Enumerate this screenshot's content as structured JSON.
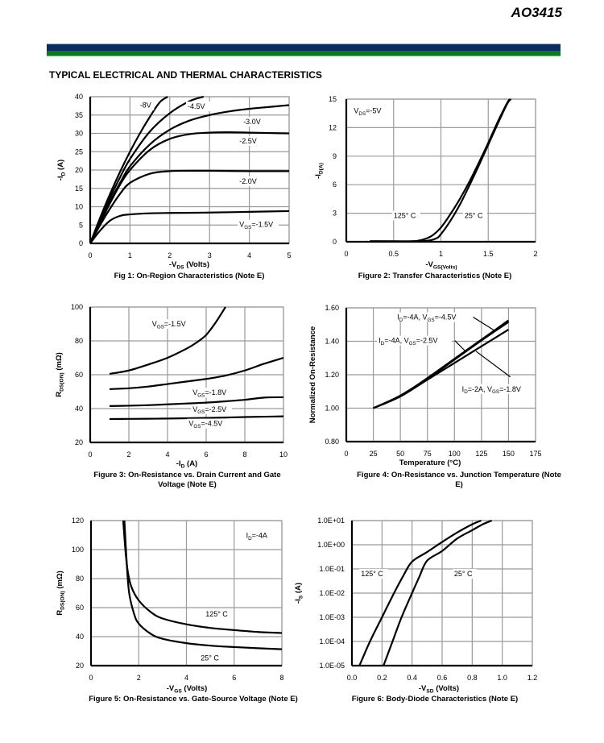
{
  "header": {
    "part_number": "AO3415",
    "section_title": "TYPICAL ELECTRICAL AND THERMAL CHARACTERISTICS",
    "brand_colors": {
      "blue": "#0a2c5e",
      "green": "#0b7b1a"
    }
  },
  "chart_data": [
    {
      "id": "fig1",
      "type": "line",
      "title": "Fig 1: On-Region Characteristics (Note E)",
      "xlabel": "-V_DS (Volts)",
      "ylabel": "-I_D (A)",
      "xlim": [
        0,
        5
      ],
      "ylim": [
        0,
        40
      ],
      "xticks": [
        0,
        1,
        2,
        3,
        4,
        5
      ],
      "yticks": [
        0,
        5,
        10,
        15,
        20,
        25,
        30,
        35,
        40
      ],
      "xtick_labels": [
        "0",
        "1",
        "2",
        "3",
        "4",
        "5"
      ],
      "ytick_labels": [
        "0",
        "5",
        "10",
        "15",
        "20",
        "25",
        "30",
        "35",
        "40"
      ],
      "grid": true,
      "series": [
        {
          "name": "-8V",
          "x": [
            0,
            0.25,
            0.5,
            0.75,
            1.0,
            1.25,
            1.5,
            1.75,
            1.95
          ],
          "y": [
            0,
            7,
            13.5,
            19.5,
            25,
            30,
            34.5,
            38.5,
            40
          ]
        },
        {
          "name": "-4.5V",
          "x": [
            0,
            0.25,
            0.5,
            0.75,
            1.0,
            1.5,
            2.0,
            2.5,
            2.85
          ],
          "y": [
            0,
            6.5,
            12.5,
            18,
            23,
            30.5,
            35.5,
            38.8,
            40
          ]
        },
        {
          "name": "-3.0V",
          "x": [
            0,
            0.25,
            0.5,
            0.75,
            1.0,
            1.5,
            2.0,
            2.5,
            3.0,
            3.5,
            4.0,
            4.5,
            5.0
          ],
          "y": [
            0,
            6,
            11.5,
            16.5,
            21,
            27,
            31,
            33.5,
            35,
            36,
            36.7,
            37.2,
            37.7
          ]
        },
        {
          "name": "-2.5V",
          "x": [
            0,
            0.25,
            0.5,
            0.75,
            1.0,
            1.5,
            2.0,
            2.5,
            3.0,
            3.5,
            4.0,
            4.5,
            5.0
          ],
          "y": [
            0,
            5.5,
            11,
            16,
            20,
            25.5,
            28.5,
            29.8,
            30.2,
            30.3,
            30.2,
            30.1,
            30.0
          ]
        },
        {
          "name": "-2.0V",
          "x": [
            0,
            0.25,
            0.5,
            0.75,
            1.0,
            1.5,
            2.0,
            2.5,
            3.0,
            4.0,
            5.0
          ],
          "y": [
            0,
            5,
            9.5,
            13.5,
            16.5,
            19,
            19.7,
            19.8,
            19.8,
            19.7,
            19.7
          ]
        },
        {
          "name": "V_GS=-1.5V",
          "x": [
            0,
            0.25,
            0.5,
            0.75,
            1.0,
            1.5,
            2.0,
            3.0,
            4.0,
            5.0
          ],
          "y": [
            0,
            3.5,
            6.2,
            7.5,
            7.9,
            8.2,
            8.3,
            8.4,
            8.6,
            8.8
          ]
        }
      ],
      "annotations": [
        {
          "text": "-8V",
          "x": 1.25,
          "y": 37
        },
        {
          "text": "-4.5V",
          "x": 2.45,
          "y": 36.7
        },
        {
          "text": "-3.0V",
          "x": 3.85,
          "y": 32.5
        },
        {
          "text": "-2.5V",
          "x": 3.75,
          "y": 27.3
        },
        {
          "text": "-2.0V",
          "x": 3.75,
          "y": 16.3
        },
        {
          "text": "V_GS=-1.5V",
          "x": 3.75,
          "y": 4.5
        }
      ]
    },
    {
      "id": "fig2",
      "type": "line",
      "title": "Figure 2: Transfer Characteristics (Note E)",
      "xlabel": "-V_GS(Volts)",
      "ylabel": "-I_D(A)",
      "xlim": [
        0,
        2
      ],
      "ylim": [
        0,
        15
      ],
      "xticks": [
        0,
        0.5,
        1,
        1.5,
        2
      ],
      "yticks": [
        0,
        3,
        6,
        9,
        12,
        15
      ],
      "xtick_labels": [
        "0",
        "0.5",
        "1",
        "1.5",
        "2"
      ],
      "ytick_labels": [
        "0",
        "3",
        "6",
        "9",
        "12",
        "15"
      ],
      "grid": true,
      "series": [
        {
          "name": "125° C",
          "x": [
            0.25,
            0.5,
            0.7,
            0.8,
            0.9,
            1.0,
            1.1,
            1.2,
            1.3,
            1.4,
            1.5,
            1.6,
            1.7,
            1.73
          ],
          "y": [
            0.05,
            0.05,
            0.05,
            0.2,
            0.6,
            1.5,
            2.9,
            4.5,
            6.3,
            8.3,
            10.4,
            12.6,
            14.6,
            15
          ]
        },
        {
          "name": "25° C",
          "x": [
            0.25,
            0.7,
            0.85,
            0.95,
            1.0,
            1.1,
            1.2,
            1.3,
            1.4,
            1.5,
            1.6,
            1.7,
            1.74
          ],
          "y": [
            0.05,
            0.05,
            0.1,
            0.35,
            0.8,
            2.2,
            3.9,
            5.9,
            8.0,
            10.2,
            12.4,
            14.5,
            15
          ]
        }
      ],
      "annotations": [
        {
          "text": "V_DS=-5V",
          "x": 0.08,
          "y": 13.5
        },
        {
          "text": "125° C",
          "x": 0.5,
          "y": 2.5
        },
        {
          "text": "25° C",
          "x": 1.25,
          "y": 2.5
        }
      ]
    },
    {
      "id": "fig3",
      "type": "line",
      "title": "Figure 3: On-Resistance vs. Drain Current and Gate Voltage (Note E)",
      "xlabel": "-I_D (A)",
      "ylabel": "R_DS(ON) (mΩ)",
      "xlim": [
        0,
        10
      ],
      "ylim": [
        20,
        100
      ],
      "xticks": [
        0,
        2,
        4,
        6,
        8,
        10
      ],
      "yticks": [
        20,
        40,
        60,
        80,
        100
      ],
      "xtick_labels": [
        "0",
        "2",
        "4",
        "6",
        "8",
        "10"
      ],
      "ytick_labels": [
        "20",
        "40",
        "60",
        "80",
        "100"
      ],
      "grid": true,
      "series": [
        {
          "name": "V_GS=-1.5V",
          "x": [
            1,
            2,
            3,
            4,
            5,
            5.5,
            6,
            6.5,
            7.0
          ],
          "y": [
            60.5,
            62.5,
            66,
            70,
            75.5,
            79,
            83.5,
            91,
            100
          ]
        },
        {
          "name": "V_GS=-1.8V",
          "x": [
            1,
            2,
            3,
            4,
            5,
            6,
            7,
            8,
            9,
            10
          ],
          "y": [
            51.5,
            52,
            53,
            54.5,
            56,
            57.5,
            59.5,
            62.5,
            66.5,
            70
          ]
        },
        {
          "name": "V_GS=-2.5V",
          "x": [
            1,
            2,
            3,
            4,
            5,
            6,
            7,
            8,
            9,
            10
          ],
          "y": [
            41.5,
            41.7,
            42,
            42.5,
            43,
            43.5,
            44.3,
            45.2,
            46.5,
            46.7
          ]
        },
        {
          "name": "V_GS=-4.5V",
          "x": [
            1,
            2,
            3,
            4,
            5,
            6,
            7,
            8,
            9,
            10
          ],
          "y": [
            33.8,
            33.9,
            34,
            34.1,
            34.3,
            34.5,
            34.7,
            35,
            35.2,
            35.4
          ]
        }
      ],
      "annotations": [
        {
          "text": "V_GS=-1.5V",
          "x": 3.2,
          "y": 88.5
        },
        {
          "text": "V_GS=-1.8V",
          "x": 5.3,
          "y": 48
        },
        {
          "text": "V_GS=-2.5V",
          "x": 5.3,
          "y": 38.2
        },
        {
          "text": "V_GS=-4.5V",
          "x": 5.1,
          "y": 29.7
        }
      ]
    },
    {
      "id": "fig4",
      "type": "line",
      "title": "Figure 4: On-Resistance vs. Junction Temperature (Note E)",
      "xlabel": "Temperature (°C)",
      "ylabel": "Normalized On-Resistance",
      "xlim": [
        0,
        175
      ],
      "ylim": [
        0.8,
        1.6
      ],
      "xticks": [
        0,
        25,
        50,
        75,
        100,
        125,
        150,
        175
      ],
      "yticks": [
        0.8,
        1.0,
        1.2,
        1.4,
        1.6
      ],
      "xtick_labels": [
        "0",
        "25",
        "50",
        "75",
        "100",
        "125",
        "150",
        "175"
      ],
      "ytick_labels": [
        "0.80",
        "1.00",
        "1.20",
        "1.40",
        "1.60"
      ],
      "grid": true,
      "series": [
        {
          "name": "I_D=-4A, V_GS=-4.5V",
          "x": [
            25,
            50,
            75,
            100,
            125,
            150
          ],
          "y": [
            1.0,
            1.075,
            1.18,
            1.295,
            1.41,
            1.525
          ]
        },
        {
          "name": "I_D=-4A, V_GS=-2.5V",
          "x": [
            25,
            50,
            75,
            100,
            125,
            150
          ],
          "y": [
            1.0,
            1.075,
            1.175,
            1.29,
            1.405,
            1.515
          ]
        },
        {
          "name": "I_D=-2A, V_GS=-1.8V",
          "x": [
            25,
            50,
            75,
            100,
            125,
            150
          ],
          "y": [
            1.0,
            1.07,
            1.17,
            1.27,
            1.37,
            1.47
          ]
        }
      ],
      "annotations": [
        {
          "text": "I_D=-4A, V_GS=-4.5V",
          "x": 47,
          "y": 1.53,
          "arrow_to": [
            138,
            1.46
          ]
        },
        {
          "text": "I_D=-4A, V_GS=-2.5V",
          "x": 30,
          "y": 1.39,
          "arrow_to": [
            111,
            1.335
          ]
        },
        {
          "text": "I_D=-2A, V_GS=-1.8V",
          "x": 107,
          "y": 1.1,
          "arrow_to": [
            120,
            1.34
          ]
        }
      ]
    },
    {
      "id": "fig5",
      "type": "line",
      "title": "Figure 5: On-Resistance vs. Gate-Source Voltage (Note E)",
      "xlabel": "-V_GS (Volts)",
      "ylabel": "R_DS(ON) (mΩ)",
      "xlim": [
        0,
        8
      ],
      "ylim": [
        20,
        120
      ],
      "xticks": [
        0,
        2,
        4,
        6,
        8
      ],
      "yticks": [
        20,
        40,
        60,
        80,
        100,
        120
      ],
      "xtick_labels": [
        "0",
        "2",
        "4",
        "6",
        "8"
      ],
      "ytick_labels": [
        "20",
        "40",
        "60",
        "80",
        "100",
        "120"
      ],
      "grid": true,
      "series": [
        {
          "name": "125° C",
          "x": [
            1.35,
            1.45,
            1.55,
            1.7,
            2.0,
            2.5,
            3.0,
            4.0,
            5.0,
            6.0,
            7.0,
            8.0
          ],
          "y": [
            120,
            98,
            84,
            74,
            65,
            57,
            52.5,
            48.5,
            46,
            44.5,
            43.2,
            42.5
          ]
        },
        {
          "name": "25° C",
          "x": [
            1.4,
            1.5,
            1.6,
            1.8,
            2.0,
            2.5,
            3.0,
            4.0,
            5.0,
            6.0,
            7.0,
            8.0
          ],
          "y": [
            120,
            90,
            70,
            56,
            49,
            42,
            38.5,
            35.5,
            33.8,
            32.8,
            32,
            31.3
          ]
        }
      ],
      "annotations": [
        {
          "text": "I_D=-4A",
          "x": 6.5,
          "y": 108
        },
        {
          "text": "125° C",
          "x": 4.8,
          "y": 54
        },
        {
          "text": "25° C",
          "x": 4.6,
          "y": 23.5
        }
      ]
    },
    {
      "id": "fig6",
      "type": "line",
      "title": "Figure 6: Body-Diode Characteristics (Note E)",
      "xlabel": "-V_SD (Volts)",
      "ylabel": "-I_S (A)",
      "xlim": [
        0,
        1.2
      ],
      "ylim": [
        1e-05,
        10
      ],
      "yscale": "log",
      "xticks": [
        0,
        0.2,
        0.4,
        0.6,
        0.8,
        1.0,
        1.2
      ],
      "yticks": [
        1e-05,
        0.0001,
        0.001,
        0.01,
        0.1,
        1,
        10
      ],
      "xtick_labels": [
        "0.0",
        "0.2",
        "0.4",
        "0.6",
        "0.8",
        "1.0",
        "1.2"
      ],
      "ytick_labels": [
        "1.0E-05",
        "1.0E-04",
        "1.0E-03",
        "1.0E-02",
        "1.0E-01",
        "1.0E+00",
        "1.0E+01"
      ],
      "grid": true,
      "series": [
        {
          "name": "125° C",
          "x": [
            0.05,
            0.12,
            0.2,
            0.28,
            0.34,
            0.4,
            0.5,
            0.6,
            0.7,
            0.8,
            0.86
          ],
          "y": [
            1e-05,
            0.0001,
            0.001,
            0.01,
            0.05,
            0.2,
            0.5,
            1.3,
            3.2,
            7,
            10
          ]
        },
        {
          "name": "25° C",
          "x": [
            0.21,
            0.27,
            0.33,
            0.4,
            0.45,
            0.5,
            0.6,
            0.7,
            0.8,
            0.87,
            0.93
          ],
          "y": [
            1e-05,
            0.0001,
            0.001,
            0.01,
            0.05,
            0.22,
            0.55,
            1.8,
            4,
            7,
            10
          ]
        }
      ],
      "annotations": [
        {
          "text": "125° C",
          "x": 0.06,
          "y": 0.05
        },
        {
          "text": "25° C",
          "x": 0.68,
          "y": 0.05
        }
      ]
    }
  ]
}
